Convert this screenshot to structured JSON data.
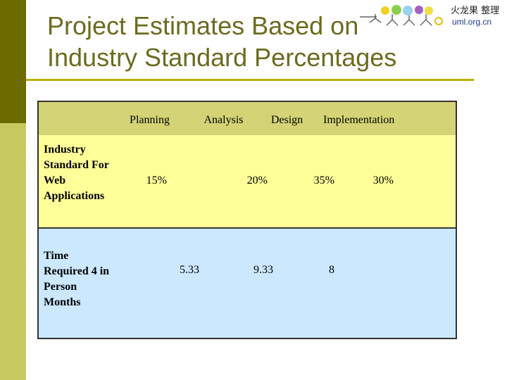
{
  "title": "Project Estimates Based on Industry Standard Percentages",
  "logo": {
    "name": "火龙果 整理",
    "url": "uml.org.cn"
  },
  "table": {
    "headers": [
      "",
      "Planning",
      "Analysis",
      "Design",
      "Implementation"
    ],
    "rows": [
      {
        "label": "Industry Standard For Web Applications",
        "values": [
          "15%",
          "20%",
          "35%",
          "30%"
        ]
      },
      {
        "label": "Time Required 4 in Person Months",
        "values": [
          "",
          "5.33",
          "9.33",
          "8"
        ]
      }
    ]
  },
  "colors": {
    "accent_dark": "#6b6b00",
    "accent_light": "#c8c860",
    "header_row": "#d4d476",
    "row1": "#ffff99",
    "row2": "#cce8ff",
    "title": "#6b6b1f"
  }
}
